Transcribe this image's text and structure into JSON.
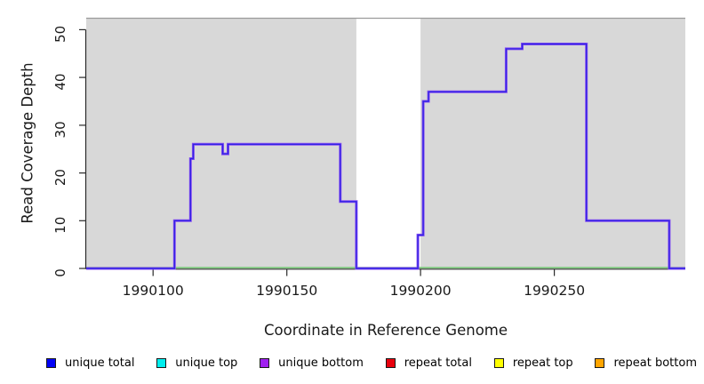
{
  "chart_data": {
    "type": "line",
    "subtype": "step-coverage",
    "title": "",
    "xlabel": "Coordinate in Reference Genome",
    "ylabel": "Read Coverage Depth",
    "xlim": [
      1990075,
      1990299
    ],
    "ylim": [
      0,
      52.5
    ],
    "xticks": [
      1990100,
      1990150,
      1990200,
      1990250
    ],
    "yticks": [
      0,
      10,
      20,
      30,
      40,
      50
    ],
    "grid": false,
    "plot_bg_color": "#d8d8d8",
    "plot_top_edge_color": "#9b9b9b",
    "axis_color": "#2a2a2a",
    "uncovered_band": {
      "x_start": 1990176,
      "x_end": 1990200,
      "color": "#ffffff"
    },
    "baseline_series": {
      "name": "zero depth baseline",
      "color": "#7fc97f",
      "y": 0
    },
    "series": [
      {
        "name": "unique bottom coverage",
        "color_outer": "#8b52f2",
        "color_core": "#3222e4",
        "step_points": [
          [
            1990075,
            0
          ],
          [
            1990108,
            10
          ],
          [
            1990114,
            23
          ],
          [
            1990115,
            26
          ],
          [
            1990126,
            24
          ],
          [
            1990128,
            26
          ],
          [
            1990170,
            14
          ],
          [
            1990176,
            0
          ],
          [
            1990199,
            7
          ],
          [
            1990201,
            35
          ],
          [
            1990203,
            37
          ],
          [
            1990232,
            46
          ],
          [
            1990238,
            47
          ],
          [
            1990262,
            10
          ],
          [
            1990293,
            0
          ],
          [
            1990299,
            0
          ]
        ]
      }
    ],
    "legend_position": "bottom",
    "legend": [
      {
        "label": "unique total",
        "color": "#0202f5"
      },
      {
        "label": "unique top",
        "color": "#00eeee"
      },
      {
        "label": "unique bottom",
        "color": "#a020f0"
      },
      {
        "label": "repeat total",
        "color": "#e8000d"
      },
      {
        "label": "repeat top",
        "color": "#ffff00"
      },
      {
        "label": "repeat bottom",
        "color": "#ffa500"
      }
    ]
  }
}
